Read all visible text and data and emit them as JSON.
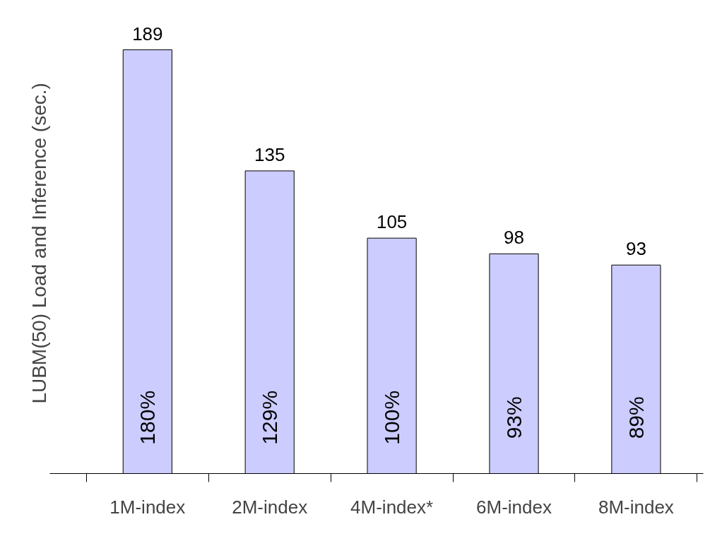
{
  "chart_data": {
    "type": "bar",
    "ylabel": "LUBM(50) Load and Inference  (sec.)",
    "categories": [
      "1M-index",
      "2M-index",
      "4M-index*",
      "6M-index",
      "8M-index"
    ],
    "values": [
      189,
      135,
      105,
      98,
      93
    ],
    "color": "#ccccff",
    "data_labels": true,
    "annotations": [
      "180%",
      "129%",
      "100%",
      "93%",
      "89%"
    ]
  }
}
